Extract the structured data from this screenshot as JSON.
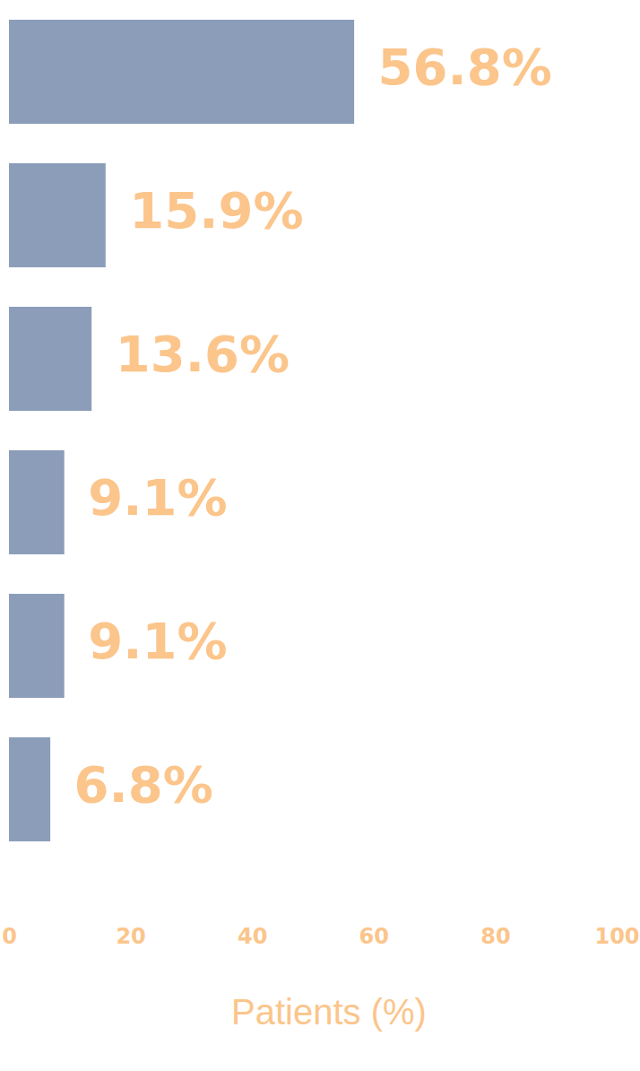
{
  "chart_data": {
    "type": "bar",
    "orientation": "horizontal",
    "categories": [
      null,
      null,
      null,
      null,
      null,
      null
    ],
    "values": [
      56.8,
      15.9,
      13.6,
      9.1,
      9.1,
      6.8
    ],
    "value_labels": [
      "56.8%",
      "15.9%",
      "13.6%",
      "9.1%",
      "9.1%",
      "6.8%"
    ],
    "data_labels": true,
    "color": "#8c9dba",
    "xlabel": "Patients (%)",
    "xlim": [
      0,
      100
    ],
    "xticks": [
      0,
      20,
      40,
      60,
      80,
      100
    ],
    "tick_labels": "x",
    "grid": false
  }
}
